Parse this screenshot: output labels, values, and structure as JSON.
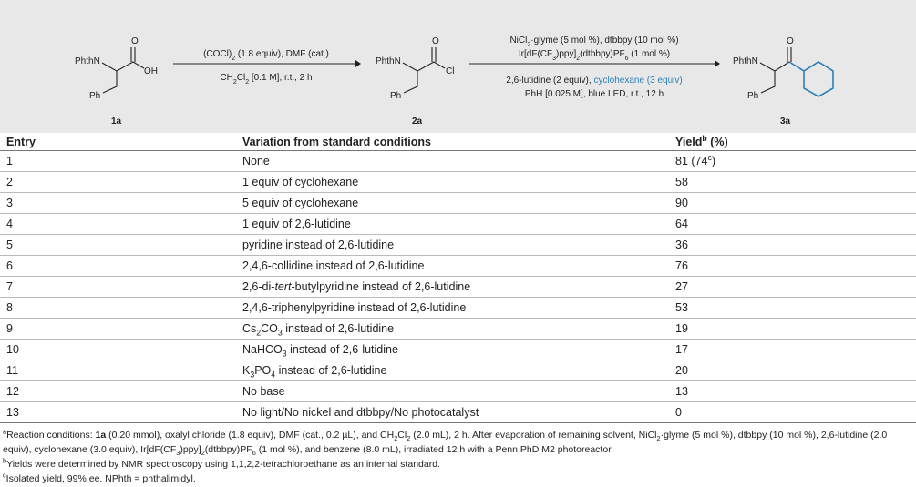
{
  "scheme": {
    "compounds": [
      {
        "label": "1a",
        "n": "PhthN",
        "o": "O",
        "end": "OH",
        "ph": "Ph"
      },
      {
        "label": "2a",
        "n": "PhthN",
        "o": "O",
        "end": "Cl",
        "ph": "Ph"
      },
      {
        "label": "3a",
        "n": "PhthN",
        "o": "O",
        "ph": "Ph"
      }
    ],
    "step1": {
      "above": [
        "(COCl)",
        "2",
        " (1.8 equiv), DMF (cat.)"
      ],
      "below": [
        "CH",
        "2",
        "Cl",
        "2",
        " [0.1 M], r.t., 2 h"
      ]
    },
    "step2": {
      "above": [
        [
          "NiCl",
          "2",
          "·glyme (5 mol %), dtbbpy (10 mol %)"
        ],
        [
          "Ir[dF(CF",
          "3",
          ")ppy]",
          "2",
          "(dtbbpy)PF",
          "6",
          " (1 mol %)"
        ]
      ],
      "below": [
        [
          "2,6-lutidine (2 equiv), ",
          "cyclohexane (3 equiv)"
        ],
        "PhH [0.025 M], blue LED, r.t., 12 h"
      ]
    }
  },
  "table": {
    "header": [
      "Entry",
      "Variation from standard conditions",
      [
        "Yield",
        "b",
        " (%)"
      ]
    ],
    "rows": [
      [
        "1",
        "None",
        [
          "81 (74",
          "c",
          ")"
        ]
      ],
      [
        "2",
        "1 equiv of cyclohexane",
        "58"
      ],
      [
        "3",
        "5 equiv of cyclohexane",
        "90"
      ],
      [
        "4",
        "1 equiv of 2,6-lutidine",
        "64"
      ],
      [
        "5",
        "pyridine instead of 2,6-lutidine",
        "36"
      ],
      [
        "6",
        "2,4,6-collidine instead of 2,6-lutidine",
        "76"
      ],
      [
        "7",
        [
          "2,6-di-",
          "tert",
          "-butylpyridine instead of 2,6-lutidine"
        ],
        "27"
      ],
      [
        "8",
        "2,4,6-triphenylpyridine instead of 2,6-lutidine",
        "53"
      ],
      [
        "9",
        [
          "Cs",
          "2",
          "CO",
          "3",
          " instead of 2,6-lutidine"
        ],
        "19"
      ],
      [
        "10",
        [
          "NaHCO",
          "3",
          " instead of 2,6-lutidine"
        ],
        "17"
      ],
      [
        "11",
        [
          "K",
          "3",
          "PO",
          "4",
          " instead of 2,6-lutidine"
        ],
        "20"
      ],
      [
        "12",
        "No base",
        "13"
      ],
      [
        "13",
        "No light/No nickel and dtbbpy/No photocatalyst",
        "0"
      ]
    ]
  },
  "footnotes": [
    [
      "a",
      "Reaction conditions: ",
      "1a",
      " (0.20 mmol), oxalyl chloride (1.8 equiv), DMF (cat., 0.2 µL), and CH",
      "2",
      "Cl",
      "2",
      " (2.0 mL), 2 h. After evaporation of remaining solvent, NiCl",
      "2",
      "·glyme (5 mol %), dtbbpy (10 mol %), 2,6-lutidine (2.0 equiv), cyclohexane (3.0 equiv), Ir[dF(CF",
      "3",
      ")ppy]",
      "2",
      "(dtbbpy)PF",
      "6",
      " (1 mol %), and benzene (8.0 mL), irradiated 12 h with a Penn PhD M2 photoreactor."
    ],
    [
      "b",
      "Yields were determined by NMR spectroscopy using 1,1,2,2-tetrachloroethane as an internal standard."
    ],
    [
      "c",
      "Isolated yield, 99% ee. NPhth = phthalimidyl."
    ]
  ]
}
